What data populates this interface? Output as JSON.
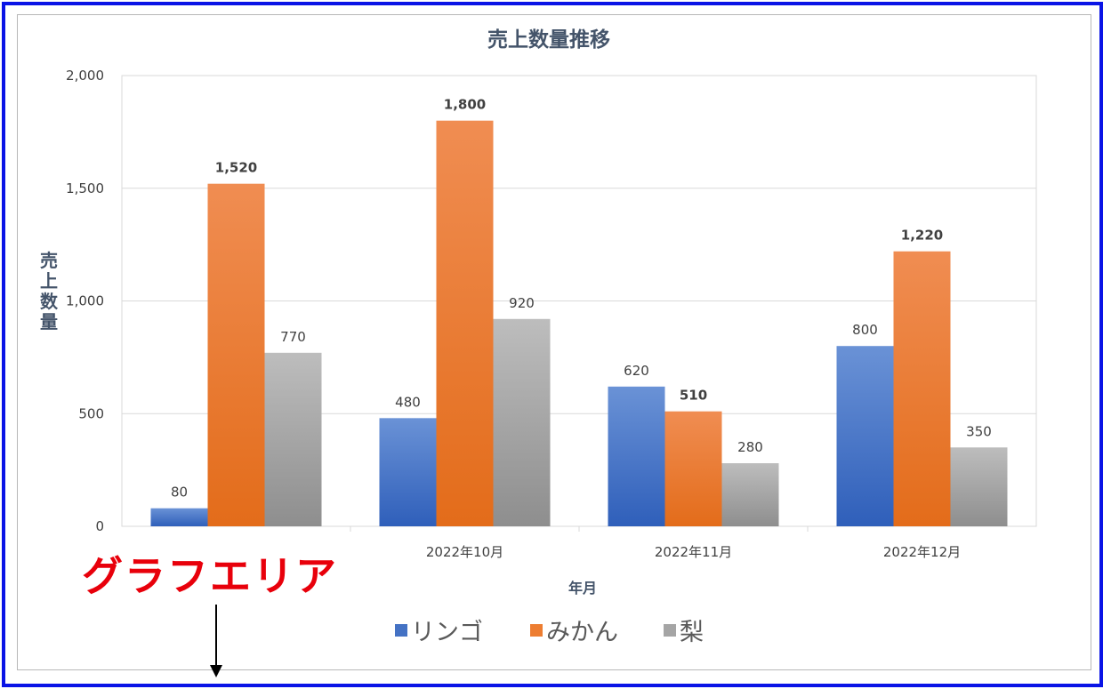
{
  "callout_label": "グラフエリア",
  "colors": {
    "frame_border": "#0a14e6",
    "callout_text": "#e8000b"
  },
  "chart_data": {
    "type": "bar",
    "title": "売上数量推移",
    "xlabel": "年月",
    "ylabel": "売上数量",
    "categories": [
      "",
      "2022年10月",
      "2022年11月",
      "2022年12月"
    ],
    "series": [
      {
        "name": "リンゴ",
        "values": [
          80,
          480,
          620,
          800
        ],
        "color": "#4472c4"
      },
      {
        "name": "みかん",
        "values": [
          1520,
          1800,
          510,
          1220
        ],
        "color": "#ed7d31"
      },
      {
        "name": "梨",
        "values": [
          770,
          920,
          280,
          350
        ],
        "color": "#a5a5a5"
      }
    ],
    "data_labels": [
      [
        "80",
        "480",
        "620",
        "800"
      ],
      [
        "1,520",
        "1,800",
        "510",
        "1,220"
      ],
      [
        "770",
        "920",
        "280",
        "350"
      ]
    ],
    "ylim": [
      0,
      2000
    ],
    "yticks": [
      0,
      500,
      1000,
      1500,
      2000
    ],
    "ytick_labels": [
      "0",
      "500",
      "1,000",
      "1,500",
      "2,000"
    ],
    "grid": true,
    "legend_position": "bottom"
  }
}
